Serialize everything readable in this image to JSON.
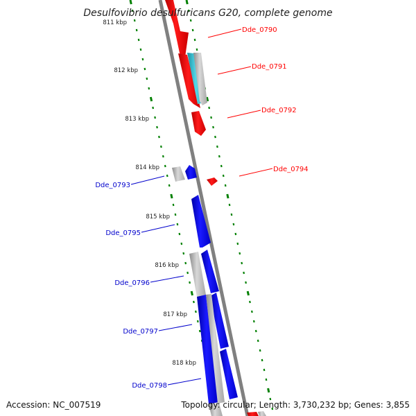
{
  "title": "Desulfovibrio desulfuricans G20, complete genome",
  "accession": "Accession: NC_007519",
  "topology": "Topology: circular; Length: 3,730,232 bp; Genes: 3,855",
  "colors": {
    "forward": "#ff0000",
    "reverse": "#0000ff",
    "grey": "#bbbbbb",
    "cyan": "#33bbcc",
    "backbone": "#808080",
    "ticks": "#008000"
  },
  "scale": [
    {
      "kbp": 811,
      "label": "811 kbp"
    },
    {
      "kbp": 812,
      "label": "812 kbp"
    },
    {
      "kbp": 813,
      "label": "813 kbp"
    },
    {
      "kbp": 814,
      "label": "814 kbp"
    },
    {
      "kbp": 815,
      "label": "815 kbp"
    },
    {
      "kbp": 816,
      "label": "816 kbp"
    },
    {
      "kbp": 817,
      "label": "817 kbp"
    },
    {
      "kbp": 818,
      "label": "818 kbp"
    }
  ],
  "labeled_genes": [
    {
      "name": "Dde_0790",
      "strand": "forward"
    },
    {
      "name": "Dde_0791",
      "strand": "forward"
    },
    {
      "name": "Dde_0792",
      "strand": "forward"
    },
    {
      "name": "Dde_0794",
      "strand": "forward"
    },
    {
      "name": "Dde_0793",
      "strand": "reverse"
    },
    {
      "name": "Dde_0795",
      "strand": "reverse"
    },
    {
      "name": "Dde_0796",
      "strand": "reverse"
    },
    {
      "name": "Dde_0797",
      "strand": "reverse"
    },
    {
      "name": "Dde_0798",
      "strand": "reverse"
    }
  ]
}
